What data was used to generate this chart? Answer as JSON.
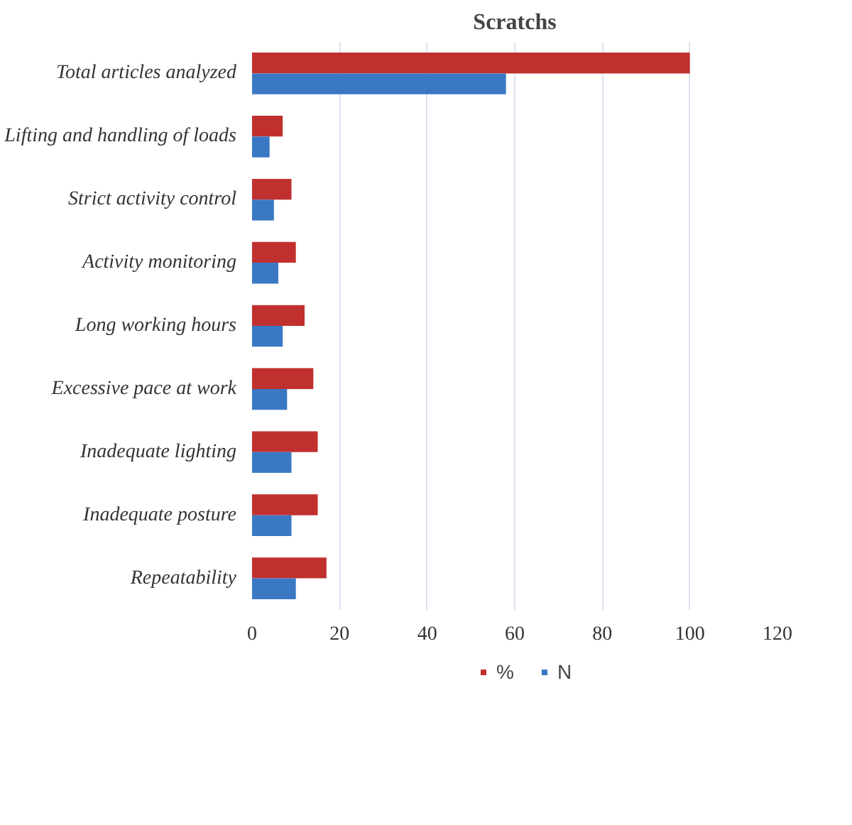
{
  "chart_data": {
    "type": "bar",
    "orientation": "horizontal",
    "title": "Scratchs",
    "categories": [
      "Total articles analyzed",
      "Lifting and handling of loads",
      "Strict activity control",
      "Activity monitoring",
      "Long working hours",
      "Excessive pace at work",
      "Inadequate lighting",
      "Inadequate posture",
      "Repeatability"
    ],
    "series": [
      {
        "name": "%",
        "color": "#c0302f",
        "values": [
          100,
          7,
          9,
          10,
          12,
          14,
          15,
          15,
          17
        ]
      },
      {
        "name": "N",
        "color": "#3a78c4",
        "values": [
          58,
          4,
          5,
          6,
          7,
          8,
          9,
          9,
          10
        ]
      }
    ],
    "xlim": [
      0,
      120
    ],
    "xticks": [
      0,
      20,
      40,
      60,
      80,
      100,
      120
    ],
    "grid": "x",
    "legend": "bottom"
  }
}
